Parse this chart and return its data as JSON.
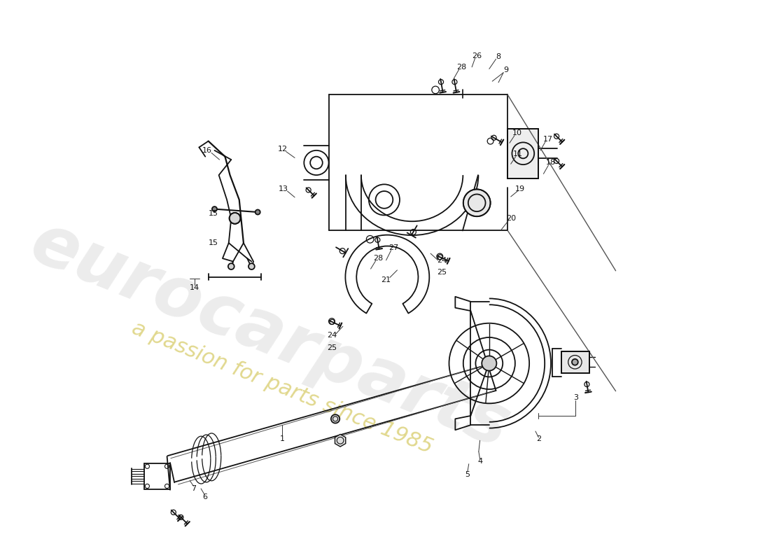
{
  "bg_color": "#ffffff",
  "line_color": "#111111",
  "lw_main": 1.3,
  "lw_thin": 0.8,
  "lw_leader": 0.7,
  "watermark1": "eurocarparts",
  "watermark2": "a passion for parts since 1985",
  "wm_color1": "#c0c0c0",
  "wm_color2": "#c8b830",
  "fig_w": 11.0,
  "fig_h": 8.0,
  "dpi": 100,
  "label_fs": 8,
  "parts": [
    "1",
    "2",
    "3",
    "4",
    "5",
    "6",
    "7",
    "8",
    "9",
    "10",
    "11",
    "12",
    "13",
    "14",
    "15",
    "16",
    "17",
    "18",
    "19",
    "20",
    "21",
    "24",
    "25",
    "26",
    "27",
    "28"
  ]
}
